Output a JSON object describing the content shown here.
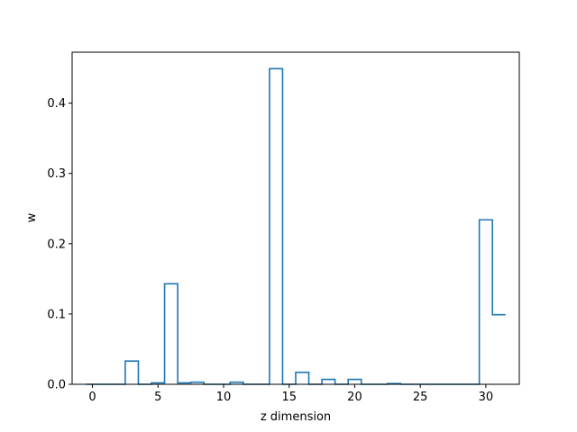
{
  "chart_data": {
    "type": "bar",
    "style": "step-histogram",
    "xlabel": "z dimension",
    "ylabel": "w",
    "xlim": [
      -1.55,
      32.55
    ],
    "ylim": [
      0,
      0.4725
    ],
    "xticks": [
      0,
      5,
      10,
      15,
      20,
      25,
      30
    ],
    "yticks": [
      0.0,
      0.1,
      0.2,
      0.3,
      0.4
    ],
    "ytick_labels": [
      "0.0",
      "0.1",
      "0.2",
      "0.3",
      "0.4"
    ],
    "grid": false,
    "x": [
      0,
      1,
      2,
      3,
      4,
      5,
      6,
      7,
      8,
      9,
      10,
      11,
      12,
      13,
      14,
      15,
      16,
      17,
      18,
      19,
      20,
      21,
      22,
      23,
      24,
      25,
      26,
      27,
      28,
      29,
      30,
      31
    ],
    "values": [
      0.0,
      0.0,
      0.0,
      0.033,
      0.0,
      0.002,
      0.143,
      0.002,
      0.003,
      0.0,
      0.0,
      0.003,
      0.0,
      0.0,
      0.449,
      0.0,
      0.017,
      0.0,
      0.007,
      0.0,
      0.007,
      0.0,
      0.0,
      0.001,
      0.0,
      0.0,
      0.0,
      0.0,
      0.0,
      0.0,
      0.234,
      0.099
    ],
    "color": "#1f77b4"
  }
}
